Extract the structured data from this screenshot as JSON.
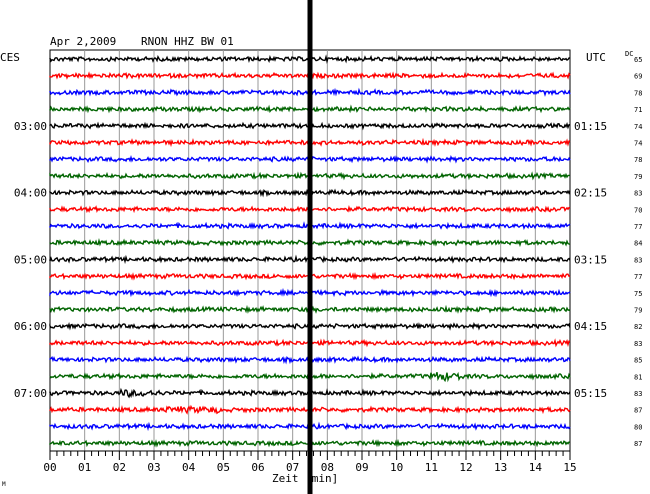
{
  "header": {
    "date": "Apr 2,2009",
    "station": "RNON HHZ BW 01",
    "left_zone": "CES",
    "right_zone": "UTC",
    "dc_label": "DC"
  },
  "left_time_labels": [
    {
      "label": "03:00",
      "row": 4
    },
    {
      "label": "04:00",
      "row": 8
    },
    {
      "label": "05:00",
      "row": 12
    },
    {
      "label": "06:00",
      "row": 16
    },
    {
      "label": "07:00",
      "row": 20
    }
  ],
  "right_time_labels": [
    {
      "label": "01:15",
      "row": 4
    },
    {
      "label": "02:15",
      "row": 8
    },
    {
      "label": "03:15",
      "row": 12
    },
    {
      "label": "04:15",
      "row": 16
    },
    {
      "label": "05:15",
      "row": 20
    }
  ],
  "x_axis": {
    "label": "Zeit [min]",
    "ticks": [
      "00",
      "01",
      "02",
      "03",
      "04",
      "05",
      "06",
      "07",
      "08",
      "09",
      "10",
      "11",
      "12",
      "13",
      "14",
      "15"
    ]
  },
  "corner_mark": "M",
  "trace_colors": [
    "#000000",
    "#ff0000",
    "#0000ff",
    "#006400"
  ],
  "chart_data": {
    "type": "line",
    "title": "Apr 2,2009   RNON HHZ BW 01",
    "xlabel": "Zeit [min]",
    "xlim": [
      0,
      15
    ],
    "rows": 24,
    "row_colors_cycle": [
      "black",
      "red",
      "blue",
      "green"
    ],
    "dc_offsets": [
      65,
      69,
      78,
      71,
      74,
      74,
      78,
      79,
      83,
      70,
      77,
      84,
      83,
      77,
      75,
      79,
      82,
      83,
      85,
      81,
      83,
      87,
      80,
      87
    ],
    "event_marker_minute": 7.5,
    "grid": true
  }
}
